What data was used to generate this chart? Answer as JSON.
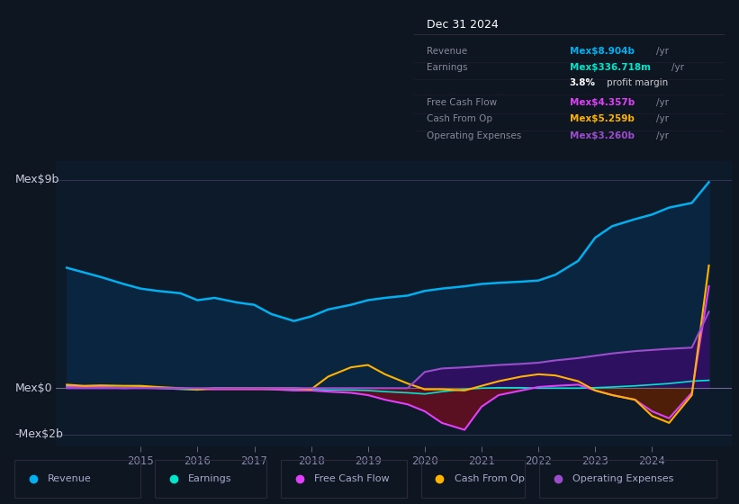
{
  "bg_color": "#0e1621",
  "plot_bg_color": "#0d1a2a",
  "ylabel_top": "Mex$9b",
  "ylabel_mid": "Mex$0",
  "ylabel_bot": "-Mex$2b",
  "ylim": [
    -2500000000.0,
    9800000000.0
  ],
  "xlim": [
    2013.5,
    2025.4
  ],
  "xtick_labels": [
    "2015",
    "2016",
    "2017",
    "2018",
    "2019",
    "2020",
    "2021",
    "2022",
    "2023",
    "2024"
  ],
  "xtick_positions": [
    2015,
    2016,
    2017,
    2018,
    2019,
    2020,
    2021,
    2022,
    2023,
    2024
  ],
  "revenue_color": "#00b0f0",
  "earnings_color": "#00e5cc",
  "fcf_color": "#e040fb",
  "cashfromop_color": "#ffb300",
  "opex_color": "#9c4dcc",
  "revenue_fill_color": "#0a2540",
  "opex_fill_color": "#2d1060",
  "fcf_fill_neg_color": "#5a1020",
  "cashfromop_fill_neg_color": "#4a2500",
  "years": [
    2013.7,
    2014.0,
    2014.3,
    2014.7,
    2015.0,
    2015.3,
    2015.7,
    2016.0,
    2016.3,
    2016.7,
    2017.0,
    2017.3,
    2017.7,
    2018.0,
    2018.3,
    2018.7,
    2019.0,
    2019.3,
    2019.7,
    2020.0,
    2020.3,
    2020.7,
    2021.0,
    2021.3,
    2021.7,
    2022.0,
    2022.3,
    2022.7,
    2023.0,
    2023.3,
    2023.7,
    2024.0,
    2024.3,
    2024.7,
    2025.0
  ],
  "revenue": [
    5200000000.0,
    5000000000.0,
    4800000000.0,
    4500000000.0,
    4300000000.0,
    4200000000.0,
    4100000000.0,
    3800000000.0,
    3900000000.0,
    3700000000.0,
    3600000000.0,
    3200000000.0,
    2900000000.0,
    3100000000.0,
    3400000000.0,
    3600000000.0,
    3800000000.0,
    3900000000.0,
    4000000000.0,
    4200000000.0,
    4300000000.0,
    4400000000.0,
    4500000000.0,
    4550000000.0,
    4600000000.0,
    4650000000.0,
    4900000000.0,
    5500000000.0,
    6500000000.0,
    7000000000.0,
    7300000000.0,
    7500000000.0,
    7800000000.0,
    8000000000.0,
    8900000000.0
  ],
  "earnings": [
    100000000.0,
    80000000.0,
    50000000.0,
    20000000.0,
    50000000.0,
    0.0,
    -50000000.0,
    -80000000.0,
    0.0,
    0.0,
    -20000000.0,
    -50000000.0,
    -50000000.0,
    -50000000.0,
    -80000000.0,
    -80000000.0,
    -100000000.0,
    -150000000.0,
    -200000000.0,
    -250000000.0,
    -150000000.0,
    -50000000.0,
    0.0,
    20000000.0,
    20000000.0,
    0.0,
    0.0,
    0.0,
    20000000.0,
    50000000.0,
    100000000.0,
    150000000.0,
    200000000.0,
    300000000.0,
    340000000.0
  ],
  "fcf": [
    50000000.0,
    50000000.0,
    50000000.0,
    0.0,
    20000000.0,
    0.0,
    -20000000.0,
    -50000000.0,
    -50000000.0,
    -50000000.0,
    -50000000.0,
    -50000000.0,
    -100000000.0,
    -100000000.0,
    -150000000.0,
    -200000000.0,
    -300000000.0,
    -500000000.0,
    -700000000.0,
    -1000000000.0,
    -1500000000.0,
    -1800000000.0,
    -800000000.0,
    -300000000.0,
    -100000000.0,
    50000000.0,
    100000000.0,
    150000000.0,
    -100000000.0,
    -300000000.0,
    -500000000.0,
    -1000000000.0,
    -1300000000.0,
    -200000000.0,
    4400000000.0
  ],
  "cashfromop": [
    150000000.0,
    100000000.0,
    120000000.0,
    100000000.0,
    100000000.0,
    50000000.0,
    0.0,
    -50000000.0,
    0.0,
    0.0,
    0.0,
    0.0,
    0.0,
    -50000000.0,
    500000000.0,
    900000000.0,
    1000000000.0,
    600000000.0,
    200000000.0,
    -50000000.0,
    -50000000.0,
    -100000000.0,
    100000000.0,
    300000000.0,
    500000000.0,
    600000000.0,
    550000000.0,
    300000000.0,
    -100000000.0,
    -300000000.0,
    -500000000.0,
    -1200000000.0,
    -1500000000.0,
    -300000000.0,
    5300000000.0
  ],
  "opex": [
    0.0,
    0.0,
    0.0,
    0.0,
    0.0,
    0.0,
    0.0,
    0.0,
    0.0,
    0.0,
    0.0,
    0.0,
    0.0,
    0.0,
    0.0,
    0.0,
    0.0,
    0.0,
    0.0,
    700000000.0,
    850000000.0,
    900000000.0,
    950000000.0,
    1000000000.0,
    1050000000.0,
    1100000000.0,
    1200000000.0,
    1300000000.0,
    1400000000.0,
    1500000000.0,
    1600000000.0,
    1650000000.0,
    1700000000.0,
    1750000000.0,
    3300000000.0
  ],
  "tooltip_title": "Dec 31 2024",
  "tooltip_rows": [
    {
      "label": "Revenue",
      "value": "Mex$8.904b",
      "suffix": " /yr",
      "value_color": "#00b0f0"
    },
    {
      "label": "Earnings",
      "value": "Mex$336.718m",
      "suffix": " /yr",
      "value_color": "#00e5cc"
    },
    {
      "label": "",
      "value": "3.8%",
      "suffix": " profit margin",
      "value_color": "#ffffff"
    },
    {
      "label": "Free Cash Flow",
      "value": "Mex$4.357b",
      "suffix": " /yr",
      "value_color": "#e040fb"
    },
    {
      "label": "Cash From Op",
      "value": "Mex$5.259b",
      "suffix": " /yr",
      "value_color": "#ffb300"
    },
    {
      "label": "Operating Expenses",
      "value": "Mex$3.260b",
      "suffix": " /yr",
      "value_color": "#9c4dcc"
    }
  ],
  "legend_entries": [
    {
      "label": "Revenue",
      "color": "#00b0f0"
    },
    {
      "label": "Earnings",
      "color": "#00e5cc"
    },
    {
      "label": "Free Cash Flow",
      "color": "#e040fb"
    },
    {
      "label": "Cash From Op",
      "color": "#ffb300"
    },
    {
      "label": "Operating Expenses",
      "color": "#9c4dcc"
    }
  ]
}
